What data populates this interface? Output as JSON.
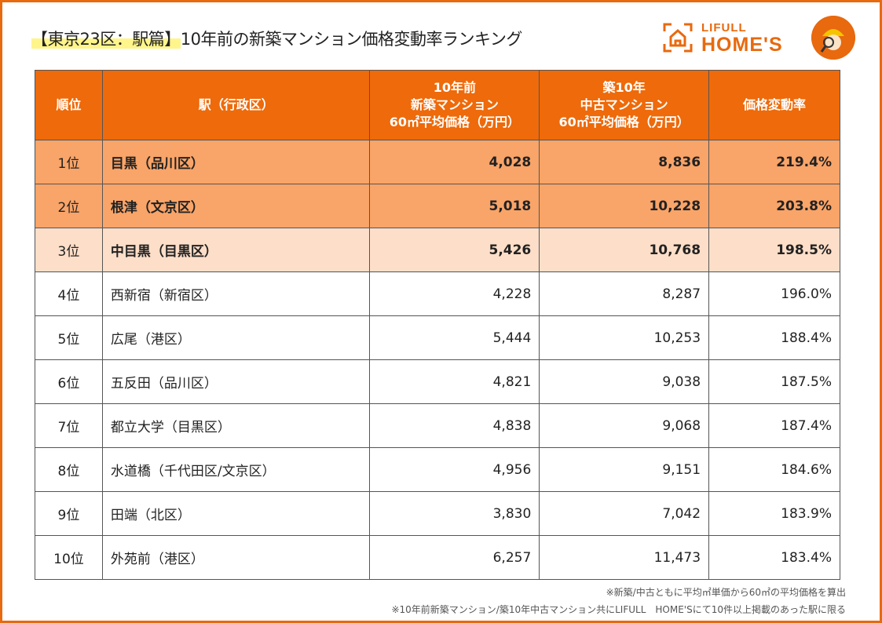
{
  "title": {
    "highlight": "【東京23区：駅篇】",
    "rest": "10年前の新築マンション価格変動率ランキング"
  },
  "logo": {
    "line1": "LIFULL",
    "line2": "HOME'S"
  },
  "colors": {
    "header": "#EE6A0A",
    "top2": "#F9A468",
    "third": "#FDDEC8",
    "border": "#E8690E"
  },
  "chart_data": {
    "type": "table",
    "columns": [
      "順位",
      "駅（行政区）",
      [
        "10年前",
        "新築マンション",
        "60㎡平均価格（万円）"
      ],
      [
        "築10年",
        "中古マンション",
        "60㎡平均価格（万円）"
      ],
      "価格変動率"
    ],
    "rows": [
      [
        "1位",
        "目黒（品川区）",
        "4,028",
        "8,836",
        "219.4%"
      ],
      [
        "2位",
        "根津（文京区）",
        "5,018",
        "10,228",
        "203.8%"
      ],
      [
        "3位",
        "中目黒（目黒区）",
        "5,426",
        "10,768",
        "198.5%"
      ],
      [
        "4位",
        "西新宿（新宿区）",
        "4,228",
        "8,287",
        "196.0%"
      ],
      [
        "5位",
        "広尾（港区）",
        "5,444",
        "10,253",
        "188.4%"
      ],
      [
        "6位",
        "五反田（品川区）",
        "4,821",
        "9,038",
        "187.5%"
      ],
      [
        "7位",
        "都立大学（目黒区）",
        "4,838",
        "9,068",
        "187.4%"
      ],
      [
        "8位",
        "水道橋（千代田区/文京区）",
        "4,956",
        "9,151",
        "184.6%"
      ],
      [
        "9位",
        "田端（北区）",
        "3,830",
        "7,042",
        "183.9%"
      ],
      [
        "10位",
        "外苑前（港区）",
        "6,257",
        "11,473",
        "183.4%"
      ]
    ]
  },
  "notes": [
    "※新築/中古ともに平均㎡単価から60㎡の平均価格を算出",
    "※10年前新築マンション/築10年中古マンション共にLIFULL　HOME'Sにて10件以上掲載のあった駅に限る"
  ]
}
